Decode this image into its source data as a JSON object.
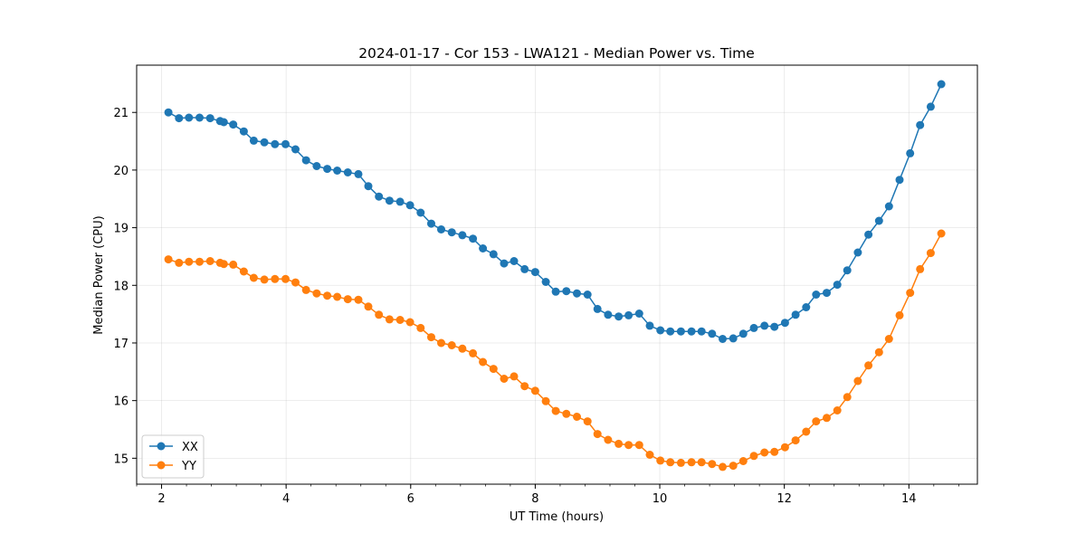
{
  "chart_data": {
    "type": "line",
    "title": "2024-01-17 - Cor 153 - LWA121 - Median Power vs. Time",
    "xlabel": "UT Time (hours)",
    "ylabel": "Median Power (CPU)",
    "xlim": [
      1.6,
      15.1
    ],
    "ylim": [
      14.55,
      21.82
    ],
    "xticks": [
      2,
      4,
      6,
      8,
      10,
      12,
      14
    ],
    "xtick_labels": [
      "2",
      "4",
      "6",
      "8",
      "10",
      "12",
      "14"
    ],
    "yticks": [
      15,
      16,
      17,
      18,
      19,
      20,
      21
    ],
    "ytick_labels": [
      "15",
      "16",
      "17",
      "18",
      "19",
      "20",
      "21"
    ],
    "grid": true,
    "legend_position": "lower-left",
    "x": [
      2.11,
      2.28,
      2.44,
      2.61,
      2.78,
      2.94,
      3.0,
      3.15,
      3.32,
      3.48,
      3.65,
      3.82,
      3.99,
      4.15,
      4.32,
      4.49,
      4.66,
      4.82,
      4.99,
      5.16,
      5.32,
      5.49,
      5.66,
      5.83,
      5.99,
      6.16,
      6.33,
      6.49,
      6.66,
      6.83,
      7.0,
      7.16,
      7.33,
      7.5,
      7.66,
      7.83,
      8.0,
      8.17,
      8.33,
      8.5,
      8.67,
      8.84,
      9.0,
      9.17,
      9.34,
      9.5,
      9.67,
      9.84,
      10.01,
      10.17,
      10.34,
      10.51,
      10.67,
      10.84,
      11.01,
      11.18,
      11.34,
      11.51,
      11.68,
      11.84,
      12.01,
      12.18,
      12.35,
      12.51,
      12.68,
      12.85,
      13.01,
      13.18,
      13.35,
      13.52,
      13.68,
      13.85,
      14.02,
      14.18,
      14.35,
      14.52
    ],
    "series": [
      {
        "name": "XX",
        "color": "#1f77b4",
        "values": [
          21.0,
          20.9,
          20.91,
          20.91,
          20.9,
          20.85,
          20.83,
          20.79,
          20.67,
          20.51,
          20.48,
          20.45,
          20.45,
          20.36,
          20.17,
          20.07,
          20.02,
          19.99,
          19.96,
          19.93,
          19.72,
          19.54,
          19.47,
          19.45,
          19.39,
          19.26,
          19.07,
          18.97,
          18.92,
          18.87,
          18.81,
          18.64,
          18.54,
          18.38,
          18.42,
          18.28,
          18.23,
          18.06,
          17.89,
          17.9,
          17.86,
          17.84,
          17.59,
          17.49,
          17.46,
          17.48,
          17.51,
          17.3,
          17.22,
          17.2,
          17.2,
          17.2,
          17.2,
          17.16,
          17.07,
          17.08,
          17.16,
          17.26,
          17.3,
          17.28,
          17.35,
          17.49,
          17.62,
          17.84,
          17.87,
          18.01,
          18.26,
          18.57,
          18.88,
          19.12,
          19.37,
          19.83,
          20.29,
          20.78,
          21.1,
          21.49
        ]
      },
      {
        "name": "YY",
        "color": "#ff7f0e",
        "values": [
          18.45,
          18.39,
          18.41,
          18.41,
          18.42,
          18.39,
          18.37,
          18.36,
          18.24,
          18.13,
          18.1,
          18.11,
          18.11,
          18.05,
          17.92,
          17.86,
          17.82,
          17.8,
          17.76,
          17.75,
          17.63,
          17.49,
          17.41,
          17.4,
          17.36,
          17.26,
          17.1,
          17.0,
          16.96,
          16.9,
          16.82,
          16.67,
          16.55,
          16.38,
          16.42,
          16.25,
          16.17,
          15.99,
          15.82,
          15.77,
          15.72,
          15.64,
          15.42,
          15.32,
          15.25,
          15.23,
          15.23,
          15.06,
          14.96,
          14.93,
          14.92,
          14.93,
          14.93,
          14.9,
          14.85,
          14.87,
          14.95,
          15.04,
          15.1,
          15.11,
          15.19,
          15.31,
          15.46,
          15.64,
          15.7,
          15.83,
          16.06,
          16.34,
          16.61,
          16.84,
          17.07,
          17.48,
          17.87,
          18.28,
          18.56,
          18.9
        ]
      }
    ]
  }
}
